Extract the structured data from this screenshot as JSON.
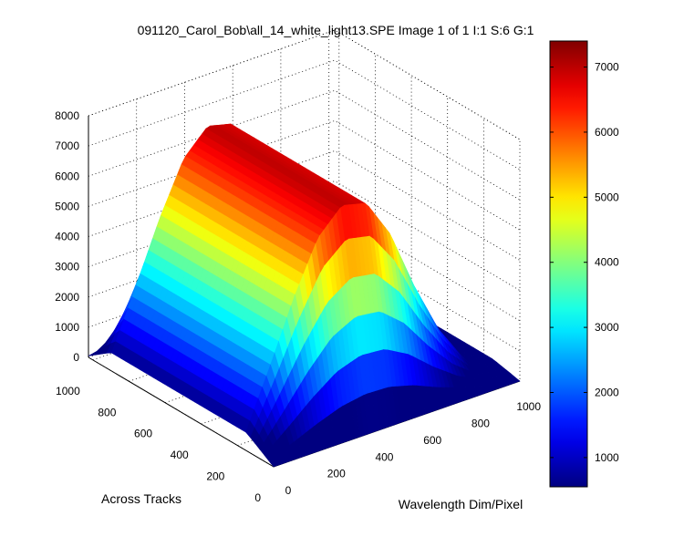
{
  "figure": {
    "title": "091120_Carol_Bob\\all_14_white_light13.SPE  Image 1 of 1  I:1  S:6  G:1"
  },
  "chart_data": {
    "type": "surface",
    "title": "091120_Carol_Bob\\all_14_white_light13.SPE  Image 1 of 1  I:1  S:6  G:1",
    "xlabel": "Wavelength Dim/Pixel",
    "ylabel": "Across Tracks",
    "zlabel": "",
    "x_ticks": [
      0,
      200,
      400,
      600,
      800,
      1000
    ],
    "y_ticks": [
      0,
      200,
      400,
      600,
      800,
      1000
    ],
    "z_ticks": [
      0,
      1000,
      2000,
      3000,
      4000,
      5000,
      6000,
      7000,
      8000
    ],
    "xlim": [
      0,
      1024
    ],
    "ylim": [
      0,
      1024
    ],
    "zlim": [
      0,
      8000
    ],
    "grid": true,
    "colormap": "jet",
    "colorbar": {
      "ticks": [
        1000,
        2000,
        3000,
        4000,
        5000,
        6000,
        7000
      ],
      "range": [
        550,
        7400
      ]
    },
    "approximate_profile": {
      "description": "White-light spectrum repeated across tracks; hump in wavelength, ~0 at edges",
      "peak_value": 7300,
      "wavelength_peak_pixel": 450,
      "across_track_plateau": [
        150,
        900
      ],
      "samples_wavelength": [
        0,
        100,
        200,
        300,
        400,
        500,
        600,
        700,
        800,
        900,
        1000
      ],
      "samples_intensity_center_track": [
        600,
        2500,
        4500,
        6200,
        7000,
        6800,
        5500,
        3500,
        1800,
        600,
        200
      ]
    }
  },
  "colors": {
    "background": "#ffffff",
    "axes_line": "#000000",
    "grid": "#000000"
  }
}
